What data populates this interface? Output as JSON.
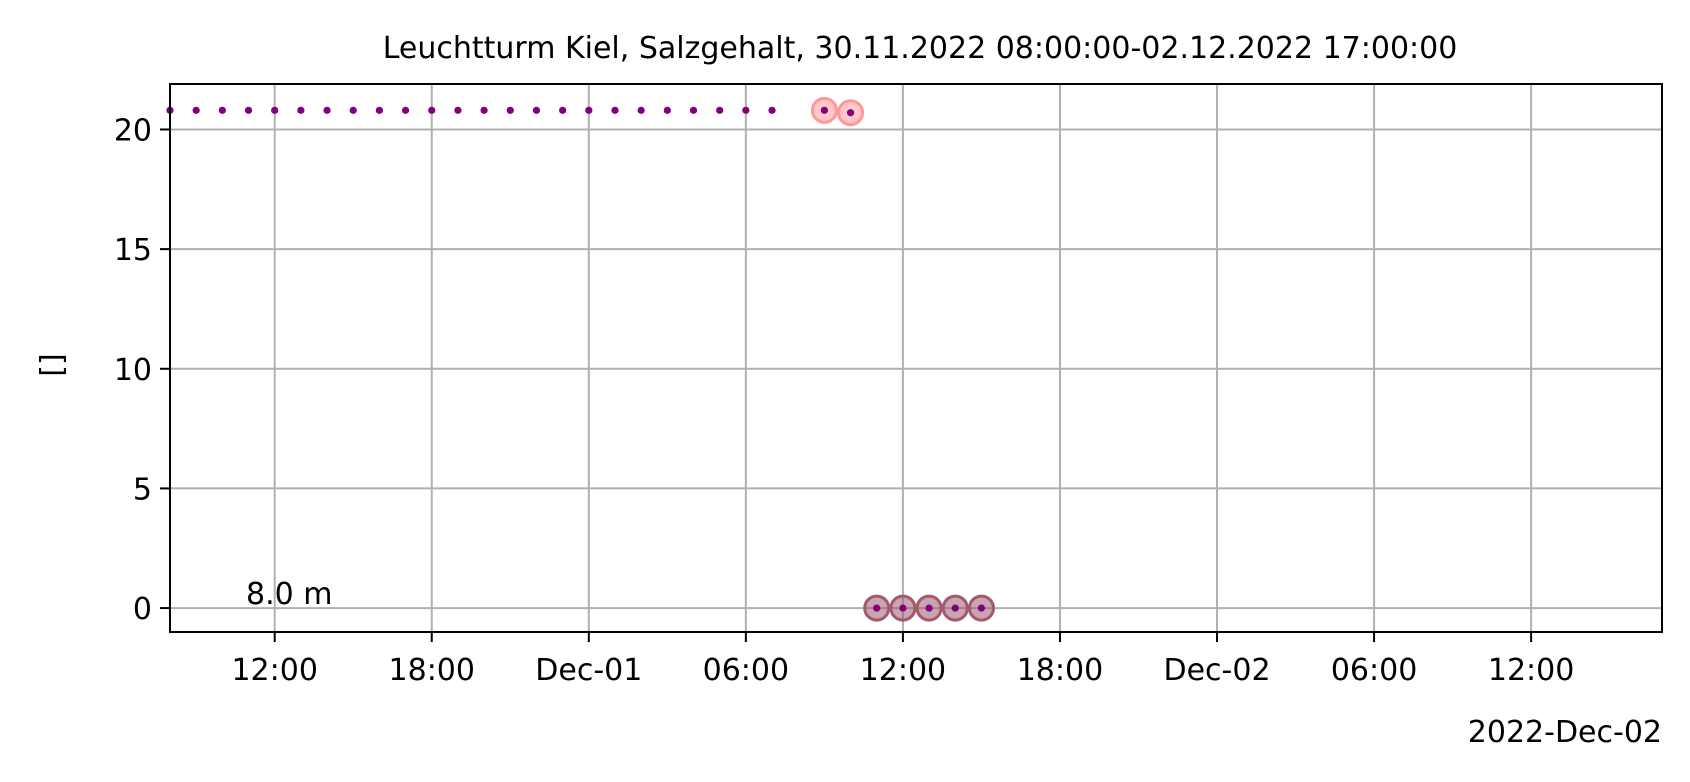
{
  "chart_data": {
    "type": "scatter",
    "title": "Leuchtturm Kiel, Salzgehalt, 30.11.2022 08:00:00-02.12.2022 17:00:00",
    "xlabel": "",
    "ylabel": "[]",
    "x_date_label": "2022-Dec-02",
    "annotation": "8.0 m",
    "xlim": [
      "2022-11-30T08:00",
      "2022-12-02T17:00"
    ],
    "ylim": [
      -1,
      21.9
    ],
    "grid": true,
    "x_ticks": [
      {
        "t": "2022-11-30T12:00",
        "label": "12:00"
      },
      {
        "t": "2022-11-30T18:00",
        "label": "18:00"
      },
      {
        "t": "2022-12-01T00:00",
        "label": "Dec-01"
      },
      {
        "t": "2022-12-01T06:00",
        "label": "06:00"
      },
      {
        "t": "2022-12-01T12:00",
        "label": "12:00"
      },
      {
        "t": "2022-12-01T18:00",
        "label": "18:00"
      },
      {
        "t": "2022-12-02T00:00",
        "label": "Dec-02"
      },
      {
        "t": "2022-12-02T06:00",
        "label": "06:00"
      },
      {
        "t": "2022-12-02T12:00",
        "label": "12:00"
      }
    ],
    "y_ticks": [
      {
        "v": 0,
        "label": "0"
      },
      {
        "v": 5,
        "label": "5"
      },
      {
        "v": 10,
        "label": "10"
      },
      {
        "v": 15,
        "label": "15"
      },
      {
        "v": 20,
        "label": "20"
      }
    ],
    "colors": {
      "points": "#800080",
      "flag_light": "#ff9999",
      "flag_dark": "#a05a6e",
      "grid": "#b0b0b0"
    },
    "series": [
      {
        "style": "points",
        "x": [
          "2022-11-30T08:00",
          "2022-11-30T09:00",
          "2022-11-30T10:00",
          "2022-11-30T11:00",
          "2022-11-30T12:00",
          "2022-11-30T13:00",
          "2022-11-30T14:00",
          "2022-11-30T15:00",
          "2022-11-30T16:00",
          "2022-11-30T17:00",
          "2022-11-30T18:00",
          "2022-11-30T19:00",
          "2022-11-30T20:00",
          "2022-11-30T21:00",
          "2022-11-30T22:00",
          "2022-11-30T23:00",
          "2022-12-01T00:00",
          "2022-12-01T01:00",
          "2022-12-01T02:00",
          "2022-12-01T03:00",
          "2022-12-01T04:00",
          "2022-12-01T05:00",
          "2022-12-01T06:00",
          "2022-12-01T07:00",
          "2022-12-01T09:00",
          "2022-12-01T10:00",
          "2022-12-01T11:00",
          "2022-12-01T12:00",
          "2022-12-01T13:00",
          "2022-12-01T14:00",
          "2022-12-01T15:00"
        ],
        "y": [
          20.8,
          20.8,
          20.8,
          20.8,
          20.8,
          20.8,
          20.8,
          20.8,
          20.8,
          20.8,
          20.8,
          20.8,
          20.8,
          20.8,
          20.8,
          20.8,
          20.8,
          20.8,
          20.8,
          20.8,
          20.8,
          20.8,
          20.8,
          20.8,
          20.8,
          20.7,
          0,
          0,
          0,
          0,
          0
        ]
      },
      {
        "style": "flag_light",
        "x": [
          "2022-12-01T09:00",
          "2022-12-01T10:00"
        ],
        "y": [
          20.8,
          20.7
        ]
      },
      {
        "style": "flag_dark",
        "x": [
          "2022-12-01T11:00",
          "2022-12-01T12:00",
          "2022-12-01T13:00",
          "2022-12-01T14:00",
          "2022-12-01T15:00"
        ],
        "y": [
          0,
          0,
          0,
          0,
          0
        ]
      }
    ]
  }
}
